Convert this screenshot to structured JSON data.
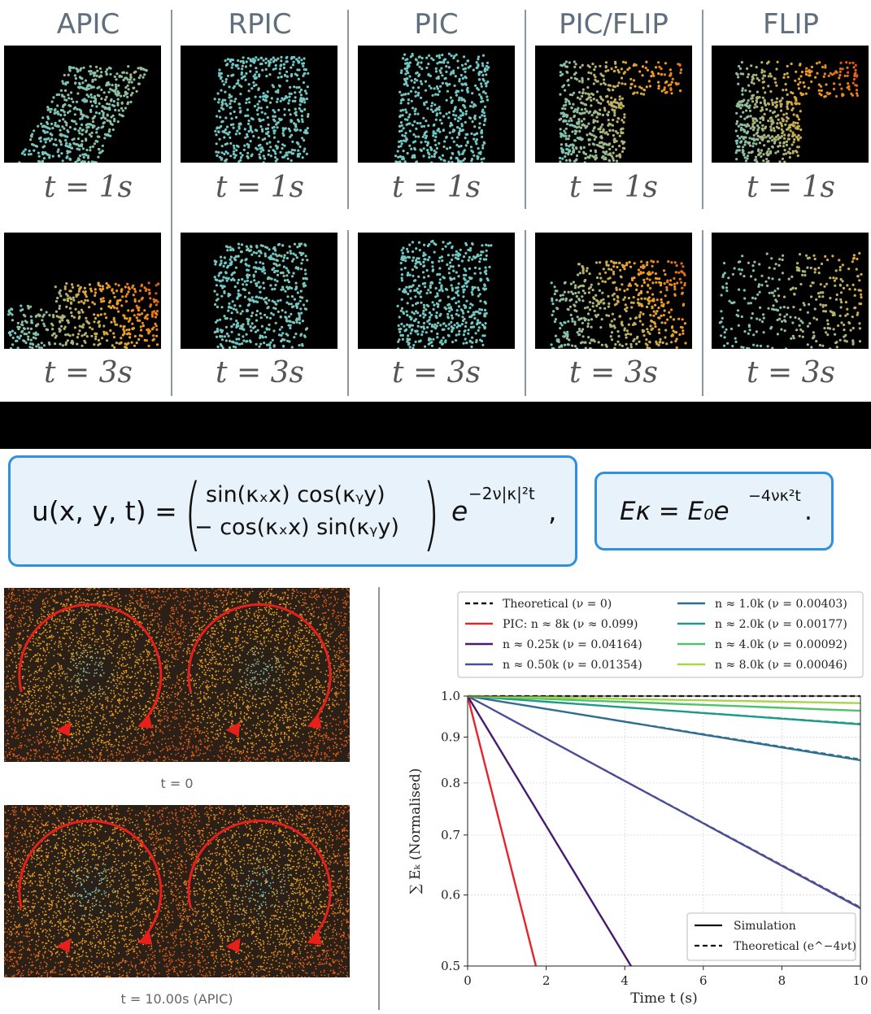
{
  "columns": [
    {
      "title": "APIC",
      "t1": "t = 1s",
      "t3": "t = 3s"
    },
    {
      "title": "RPIC",
      "t1": "t = 1s",
      "t3": "t = 3s"
    },
    {
      "title": "PIC",
      "t1": "t = 1s",
      "t3": "t = 3s"
    },
    {
      "title": "PIC/FLIP",
      "t1": "t = 1s",
      "t3": "t = 3s"
    },
    {
      "title": "FLIP",
      "t1": "t = 1s",
      "t3": "t = 3s"
    }
  ],
  "equations": {
    "velocity_lhs": "u(x, y, t) =",
    "velocity_row1": "sin(κₓx) cos(κᵧy)",
    "velocity_row2": "− cos(κₓx) sin(κᵧy)",
    "velocity_exp": "e",
    "velocity_exp_sup": "−2ν|κ|²t",
    "velocity_trail": ",",
    "energy": "Eκ = E₀e",
    "energy_sup": "−4νκ²t",
    "energy_trail": "."
  },
  "vortex_captions": {
    "top": "t = 0",
    "bottom": "t = 10.00s (APIC)"
  },
  "colors": {
    "particle_cold": "#6fc8c8",
    "particle_warm": "#f0a020",
    "particle_hot": "#d83010",
    "arrow": "#e8201c",
    "box_border": "#2f8fe0",
    "box_fill": "#e8f2fb"
  },
  "chart_data": {
    "type": "line",
    "xlabel": "Time t (s)",
    "ylabel": "∑ Eₖ (Normalised)",
    "xlim": [
      0,
      10
    ],
    "ylim": [
      0.5,
      1.0
    ],
    "yscale": "log",
    "xticks": [
      0,
      2,
      4,
      6,
      8,
      10
    ],
    "yticks": [
      0.5,
      0.6,
      0.7,
      0.8,
      0.9,
      1.0
    ],
    "ytick_labels": [
      "0.5",
      "0.6",
      "0.7",
      "0.8",
      "0.9",
      "1.0"
    ],
    "grid": true,
    "legend_position": "top (above plot)",
    "series": [
      {
        "name": "Theoretical (ν = 0)",
        "color": "#111111",
        "dash": true,
        "x": [
          0,
          10
        ],
        "y": [
          1.0,
          1.0
        ]
      },
      {
        "name": "PIC: n ≈ 8k (ν ≈ 0.099)",
        "color": "#e8232a",
        "dash": false,
        "x": [
          0,
          1.74
        ],
        "y": [
          1.0,
          0.5
        ]
      },
      {
        "name": "n ≈ 0.25k (ν = 0.04164)",
        "color": "#4a1a6e",
        "dash": false,
        "x": [
          0,
          4.16
        ],
        "y": [
          1.0,
          0.5
        ]
      },
      {
        "name": "n ≈ 0.50k (ν = 0.01354)",
        "color": "#4a4e92",
        "dash": false,
        "x": [
          0,
          10
        ],
        "y": [
          1.0,
          0.58
        ]
      },
      {
        "name": "n ≈ 1.0k (ν = 0.00403)",
        "color": "#2f6e8e",
        "dash": false,
        "x": [
          0,
          10
        ],
        "y": [
          1.0,
          0.848
        ]
      },
      {
        "name": "n ≈ 2.0k (ν = 0.00177)",
        "color": "#1f9a8a",
        "dash": false,
        "x": [
          0,
          10
        ],
        "y": [
          1.0,
          0.93
        ]
      },
      {
        "name": "n ≈ 4.0k (ν = 0.00092)",
        "color": "#4ec36a",
        "dash": false,
        "x": [
          0,
          10
        ],
        "y": [
          1.0,
          0.963
        ]
      },
      {
        "name": "n ≈ 8.0k (ν = 0.00046)",
        "color": "#a6d64a",
        "dash": false,
        "x": [
          0,
          10
        ],
        "y": [
          1.0,
          0.982
        ]
      }
    ],
    "theoretical_dashed": [
      {
        "color": "#4a4e92",
        "x": [
          0,
          10
        ],
        "y": [
          1.0,
          0.582
        ]
      },
      {
        "color": "#2f6e8e",
        "x": [
          0,
          10
        ],
        "y": [
          1.0,
          0.851
        ]
      },
      {
        "color": "#1f9a8a",
        "x": [
          0,
          10
        ],
        "y": [
          1.0,
          0.932
        ]
      },
      {
        "color": "#4ec36a",
        "x": [
          0,
          10
        ],
        "y": [
          1.0,
          0.964
        ]
      },
      {
        "color": "#a6d64a",
        "x": [
          0,
          10
        ],
        "y": [
          1.0,
          0.982
        ]
      }
    ],
    "style_legend": [
      {
        "label": "Simulation",
        "dash": false
      },
      {
        "label": "Theoretical (e^−4νt)",
        "dash": true
      }
    ]
  }
}
